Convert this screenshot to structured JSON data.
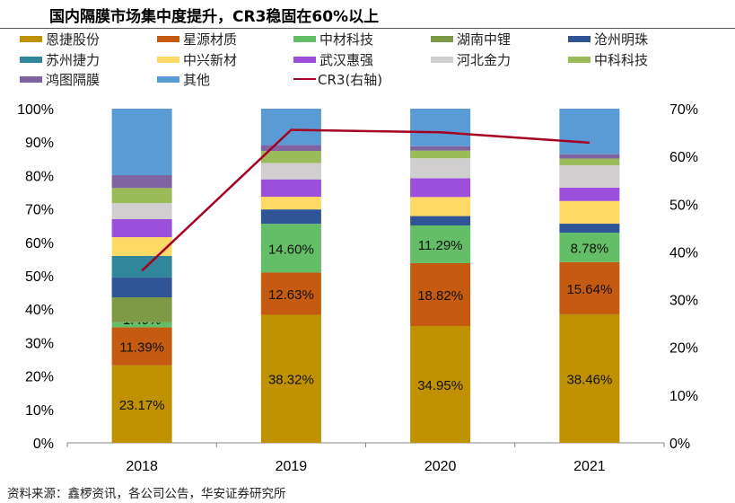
{
  "title": "国内隔膜市场集中度提升，CR3稳固在60%以上",
  "source": "资料来源：鑫椤资讯，各公司公告，华安证券研究所",
  "chart_data": {
    "type": "bar",
    "stacked": true,
    "title": "国内隔膜市场集中度提升，CR3稳固在60%以上",
    "categories": [
      "2018",
      "2019",
      "2020",
      "2021"
    ],
    "ylim": [
      0,
      100
    ],
    "y_ticks": [
      "0%",
      "10%",
      "20%",
      "30%",
      "40%",
      "50%",
      "60%",
      "70%",
      "80%",
      "90%",
      "100%"
    ],
    "y2lim": [
      0,
      70
    ],
    "y2_ticks": [
      "0%",
      "10%",
      "20%",
      "30%",
      "40%",
      "50%",
      "60%",
      "70%"
    ],
    "grid": false,
    "legend_position": "top",
    "series": [
      {
        "name": "恩捷股份",
        "color": "#C09100",
        "values": [
          23.17,
          38.32,
          34.95,
          38.46
        ],
        "labels": [
          "23.17%",
          "38.32%",
          "34.95%",
          "38.46%"
        ]
      },
      {
        "name": "星源材质",
        "color": "#C55A11",
        "values": [
          11.39,
          12.63,
          18.82,
          15.64
        ],
        "labels": [
          "11.39%",
          "12.63%",
          "18.82%",
          "15.64%"
        ]
      },
      {
        "name": "中材科技",
        "color": "#63BE67",
        "values": [
          1.49,
          14.6,
          11.29,
          8.78
        ],
        "labels": [
          "1.49%",
          "14.60%",
          "11.29%",
          "8.78%"
        ]
      },
      {
        "name": "湖南中锂",
        "color": "#7E9A47",
        "values": [
          7.5,
          0,
          0,
          0
        ]
      },
      {
        "name": "沧州明珠",
        "color": "#2F5597",
        "values": [
          5.9,
          4.3,
          2.8,
          2.7
        ]
      },
      {
        "name": "苏州捷力",
        "color": "#31869B",
        "values": [
          6.5,
          0,
          0,
          0
        ]
      },
      {
        "name": "中兴新材",
        "color": "#FFD966",
        "values": [
          5.6,
          3.8,
          5.7,
          6.8
        ]
      },
      {
        "name": "武汉惠强",
        "color": "#9B4FDB",
        "values": [
          5.4,
          5.2,
          5.6,
          4.0
        ]
      },
      {
        "name": "河北金力",
        "color": "#D0CECE",
        "values": [
          4.8,
          4.9,
          6.0,
          6.7
        ]
      },
      {
        "name": "中科科技",
        "color": "#9BBB59",
        "values": [
          4.5,
          3.6,
          2.3,
          2.0
        ]
      },
      {
        "name": "鸿图隔膜",
        "color": "#8064A2",
        "values": [
          3.85,
          1.8,
          1.3,
          1.3
        ]
      },
      {
        "name": "其他",
        "color": "#5B9BD5",
        "values": [
          19.9,
          10.85,
          11.24,
          13.62
        ]
      }
    ],
    "line": {
      "name": "CR3(右轴)",
      "color": "#A50021",
      "axis": "right",
      "values": [
        36.05,
        65.55,
        65.06,
        62.88
      ]
    }
  }
}
